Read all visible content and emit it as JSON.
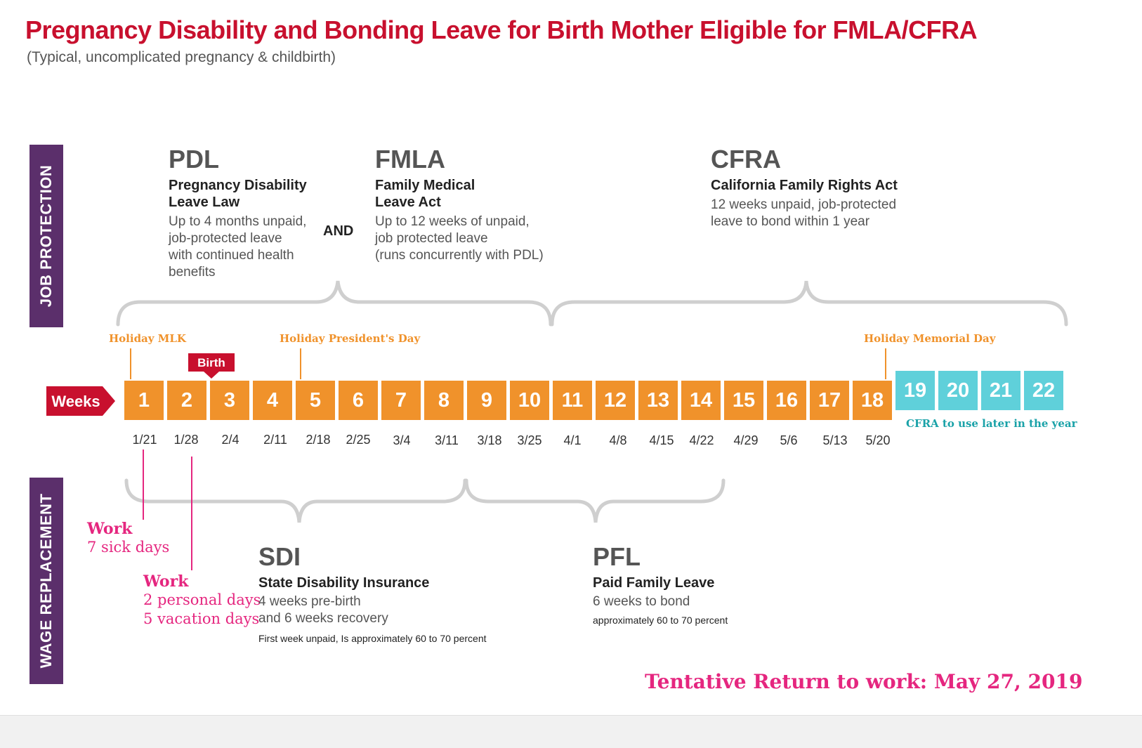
{
  "title": "Pregnancy Disability and Bonding Leave for Birth Mother Eligible for FMLA/CFRA",
  "subtitle": "(Typical, uncomplicated pregnancy & childbirth)",
  "sections": {
    "job_protection": "JOB PROTECTION",
    "wage_replacement": "WAGE REPLACEMENT"
  },
  "laws": {
    "pdl": {
      "abbr": "PDL",
      "name_lines": [
        "Pregnancy Disability",
        "Leave Law"
      ],
      "desc_lines": [
        "Up to 4 months unpaid,",
        "job-protected leave",
        "with continued health",
        "benefits"
      ]
    },
    "and_label": "AND",
    "fmla": {
      "abbr": "FMLA",
      "name_lines": [
        "Family Medical",
        "Leave Act"
      ],
      "desc_lines": [
        "Up to 12 weeks of unpaid,",
        "job protected leave",
        "(runs concurrently with PDL)"
      ]
    },
    "cfra": {
      "abbr": "CFRA",
      "name_lines": [
        "California Family Rights Act"
      ],
      "desc_lines": [
        "12 weeks unpaid, job-protected",
        "leave to bond within 1 year"
      ]
    },
    "sdi": {
      "abbr": "SDI",
      "name_lines": [
        "State Disability Insurance"
      ],
      "desc_lines": [
        "4 weeks pre-birth",
        "and 6 weeks recovery"
      ],
      "note": "First week unpaid, Is approximately 60 to 70 percent"
    },
    "pfl": {
      "abbr": "PFL",
      "name_lines": [
        "Paid Family Leave"
      ],
      "desc_lines": [
        "6 weeks to bond"
      ],
      "note": "approximately 60 to 70 percent"
    }
  },
  "holidays": {
    "mlk": "Holiday MLK",
    "presidents": "Holiday President's Day",
    "memorial": "Holiday Memorial Day"
  },
  "birth_label": "Birth",
  "weeks_label": "Weeks",
  "weeks": [
    "1",
    "2",
    "3",
    "4",
    "5",
    "6",
    "7",
    "8",
    "9",
    "10",
    "11",
    "12",
    "13",
    "14",
    "15",
    "16",
    "17",
    "18",
    "19",
    "20",
    "21",
    "22"
  ],
  "dates": [
    "1/21",
    "1/28",
    "2/4",
    "2/11",
    "2/18",
    "2/25",
    "3/4",
    "3/11",
    "3/18",
    "3/25",
    "4/1",
    "4/8",
    "4/15",
    "4/22",
    "4/29",
    "5/6",
    "5/13",
    "5/20"
  ],
  "cfra_later": "CFRA to use later in the year",
  "work_notes": {
    "first": {
      "title": "Work",
      "lines": [
        "7 sick days"
      ]
    },
    "second": {
      "title": "Work",
      "lines": [
        "2 personal days",
        "5 vacation days"
      ]
    }
  },
  "return_text": "Tentative Return to work: May 27, 2019",
  "colors": {
    "title_red": "#c8102e",
    "purple": "#5b2f6b",
    "orange": "#f0922b",
    "teal": "#5fd0da",
    "pink": "#e5267f",
    "weeks_red": "#c8102e"
  }
}
